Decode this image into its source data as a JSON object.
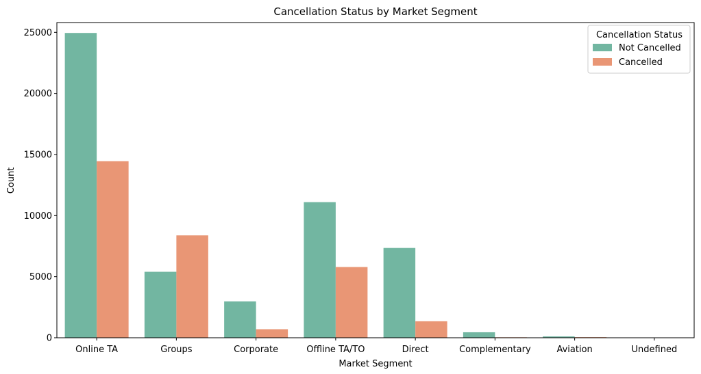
{
  "chart_data": {
    "type": "bar",
    "title": "Cancellation Status by Market Segment",
    "xlabel": "Market Segment",
    "ylabel": "Count",
    "categories": [
      "Online TA",
      "Groups",
      "Corporate",
      "Offline TA/TO",
      "Direct",
      "Complementary",
      "Aviation",
      "Undefined"
    ],
    "series": [
      {
        "name": "Not Cancelled",
        "color": "#72b6a1",
        "values": [
          24950,
          5400,
          2980,
          11100,
          7350,
          450,
          110,
          0
        ]
      },
      {
        "name": "Cancelled",
        "color": "#e99675",
        "values": [
          14450,
          8380,
          700,
          5790,
          1350,
          40,
          50,
          2
        ]
      }
    ],
    "ylim": [
      0,
      25800
    ],
    "yticks": [
      0,
      5000,
      10000,
      15000,
      20000,
      25000
    ],
    "legend": {
      "title": "Cancellation Status",
      "placement": "top-right"
    },
    "grid": false
  }
}
